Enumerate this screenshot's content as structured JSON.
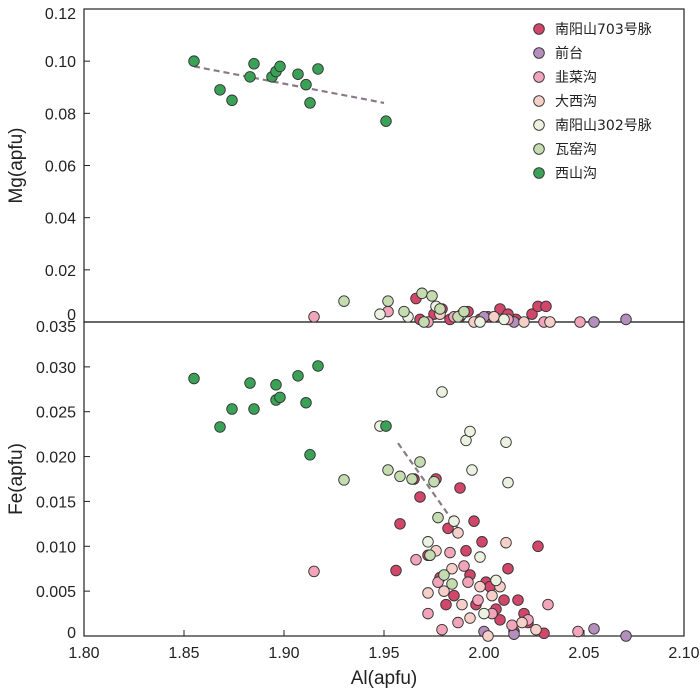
{
  "chart_data": {
    "type": "scatter",
    "panels": [
      {
        "name": "mg",
        "ylabel": "Mg(apfu)",
        "ylim": [
          0,
          0.12
        ],
        "yticks": [
          0,
          0.02,
          0.04,
          0.06,
          0.08,
          0.1,
          0.12
        ],
        "yticklabels": [
          "0",
          "0.02",
          "0.04",
          "0.06",
          "0.08",
          "0.10",
          "0.12"
        ],
        "trend": [
          [
            1.855,
            0.098
          ],
          [
            1.95,
            0.084
          ]
        ]
      },
      {
        "name": "fe",
        "ylabel": "Fe(apfu)",
        "ylim": [
          0,
          0.035
        ],
        "yticks": [
          0,
          0.005,
          0.01,
          0.015,
          0.02,
          0.025,
          0.03,
          0.035
        ],
        "yticklabels": [
          "0",
          "0.005",
          "0.010",
          "0.015",
          "0.020",
          "0.025",
          "0.030",
          "0.035"
        ],
        "trend": [
          [
            1.957,
            0.0215
          ],
          [
            1.987,
            0.012
          ]
        ]
      }
    ],
    "xlabel": "Al(apfu)",
    "xlim": [
      1.8,
      2.1
    ],
    "xticks": [
      1.8,
      1.85,
      1.9,
      1.95,
      2.0,
      2.05,
      2.1
    ],
    "xticklabels": [
      "1.80",
      "1.85",
      "1.90",
      "1.95",
      "2.00",
      "2.05",
      "2.10"
    ],
    "legend_position": "top-right",
    "series": [
      {
        "name": "南阳山703号脉",
        "color": "#d0476a",
        "mg_points": [
          [
            1.968,
            0.001
          ],
          [
            1.975,
            0.003
          ],
          [
            1.983,
            0.001
          ],
          [
            1.992,
            0.004
          ],
          [
            2.002,
            0.002
          ],
          [
            2.008,
            0.005
          ],
          [
            2.016,
            0.001
          ],
          [
            2.024,
            0.003
          ],
          [
            2.027,
            0.006
          ],
          [
            1.979,
            0.005
          ],
          [
            1.998,
            0.001
          ],
          [
            2.012,
            0.003
          ],
          [
            1.988,
            0.002
          ],
          [
            2.031,
            0.006
          ],
          [
            1.966,
            0.009
          ]
        ],
        "fe_points": [
          [
            1.956,
            0.0073
          ],
          [
            1.958,
            0.0125
          ],
          [
            1.965,
            0.0175
          ],
          [
            1.968,
            0.0155
          ],
          [
            1.972,
            0.009
          ],
          [
            1.976,
            0.0175
          ],
          [
            1.978,
            0.0065
          ],
          [
            1.982,
            0.012
          ],
          [
            1.985,
            0.0045
          ],
          [
            1.988,
            0.0165
          ],
          [
            1.991,
            0.0095
          ],
          [
            1.993,
            0.0068
          ],
          [
            1.996,
            0.0035
          ],
          [
            1.999,
            0.0105
          ],
          [
            2.001,
            0.006
          ],
          [
            2.003,
            0.0055
          ],
          [
            2.006,
            0.003
          ],
          [
            2.008,
            0.0018
          ],
          [
            2.012,
            0.0075
          ],
          [
            2.015,
            0.0005
          ],
          [
            2.017,
            0.004
          ],
          [
            2.02,
            0.0025
          ],
          [
            2.022,
            0.0015
          ],
          [
            2.027,
            0.01
          ],
          [
            2.03,
            0.0003
          ],
          [
            1.995,
            0.0128
          ],
          [
            1.981,
            0.0035
          ],
          [
            2.01,
            0.004
          ]
        ]
      },
      {
        "name": "前台",
        "color": "#b48fbe",
        "mg_points": [
          [
            2.055,
            0.0
          ],
          [
            2.071,
            0.001
          ],
          [
            2.0,
            0.002
          ],
          [
            2.015,
            0.0
          ]
        ],
        "fe_points": [
          [
            2.055,
            0.0008
          ],
          [
            2.071,
            0.0
          ],
          [
            2.0,
            0.0005
          ],
          [
            2.015,
            0.0002
          ]
        ]
      },
      {
        "name": "韭菜沟",
        "color": "#f2a5ba",
        "mg_points": [
          [
            1.915,
            0.002
          ],
          [
            1.952,
            0.004
          ],
          [
            1.972,
            0.0
          ],
          [
            1.985,
            0.002
          ],
          [
            2.012,
            0.001
          ],
          [
            2.03,
            0.0
          ],
          [
            2.048,
            0.0
          ]
        ],
        "fe_points": [
          [
            1.915,
            0.0072
          ],
          [
            1.966,
            0.0085
          ],
          [
            1.972,
            0.0025
          ],
          [
            1.977,
            0.006
          ],
          [
            1.983,
            0.0093
          ],
          [
            1.987,
            0.0015
          ],
          [
            1.992,
            0.006
          ],
          [
            1.997,
            0.004
          ],
          [
            2.004,
            0.0025
          ],
          [
            2.014,
            0.0012
          ],
          [
            2.022,
            0.0018
          ],
          [
            2.032,
            0.0035
          ],
          [
            2.047,
            0.0005
          ],
          [
            1.979,
            0.0007
          ],
          [
            1.99,
            0.0078
          ]
        ]
      },
      {
        "name": "大西沟",
        "color": "#f6cfc8",
        "mg_points": [
          [
            1.978,
            0.003
          ],
          [
            1.995,
            0.0
          ],
          [
            2.005,
            0.002
          ],
          [
            2.02,
            0.0
          ],
          [
            2.033,
            0.0
          ]
        ],
        "fe_points": [
          [
            1.976,
            0.0095
          ],
          [
            1.98,
            0.005
          ],
          [
            1.984,
            0.0075
          ],
          [
            1.989,
            0.0035
          ],
          [
            1.993,
            0.002
          ],
          [
            1.998,
            0.0055
          ],
          [
            2.004,
            0.0045
          ],
          [
            2.011,
            0.0104
          ],
          [
            2.019,
            0.0015
          ],
          [
            2.026,
            0.0007
          ],
          [
            1.987,
            0.0115
          ],
          [
            2.002,
            0.0
          ],
          [
            2.008,
            0.0055
          ],
          [
            1.972,
            0.0048
          ]
        ]
      },
      {
        "name": "南阳山302号脉",
        "color": "#ecf2e0",
        "mg_points": [
          [
            1.948,
            0.003
          ],
          [
            1.962,
            0.002
          ],
          [
            1.976,
            0.006
          ],
          [
            1.989,
            0.003
          ],
          [
            1.998,
            0.0
          ],
          [
            2.01,
            0.001
          ]
        ],
        "fe_points": [
          [
            1.948,
            0.0234
          ],
          [
            1.979,
            0.0272
          ],
          [
            1.991,
            0.0218
          ],
          [
            1.993,
            0.0228
          ],
          [
            1.994,
            0.0185
          ],
          [
            2.011,
            0.0216
          ],
          [
            2.012,
            0.0171
          ],
          [
            1.972,
            0.0105
          ],
          [
            1.985,
            0.0128
          ],
          [
            1.998,
            0.0088
          ],
          [
            2.006,
            0.0062
          ],
          [
            2.0,
            0.0025
          ]
        ]
      },
      {
        "name": "瓦窑沟",
        "color": "#c5dbb0",
        "mg_points": [
          [
            1.93,
            0.008
          ],
          [
            1.952,
            0.008
          ],
          [
            1.969,
            0.011
          ],
          [
            1.974,
            0.01
          ],
          [
            1.978,
            0.005
          ],
          [
            1.987,
            0.002
          ],
          [
            1.97,
            0.0
          ],
          [
            1.96,
            0.004
          ],
          [
            1.99,
            0.004
          ]
        ],
        "fe_points": [
          [
            1.93,
            0.0174
          ],
          [
            1.952,
            0.0185
          ],
          [
            1.958,
            0.0178
          ],
          [
            1.964,
            0.0175
          ],
          [
            1.968,
            0.0194
          ],
          [
            1.973,
            0.009
          ],
          [
            1.977,
            0.0132
          ],
          [
            1.98,
            0.0068
          ],
          [
            1.984,
            0.0058
          ],
          [
            1.975,
            0.0172
          ]
        ]
      },
      {
        "name": "西山沟",
        "color": "#3aa257",
        "mg_points": [
          [
            1.855,
            0.1
          ],
          [
            1.868,
            0.089
          ],
          [
            1.874,
            0.085
          ],
          [
            1.883,
            0.094
          ],
          [
            1.885,
            0.099
          ],
          [
            1.894,
            0.094
          ],
          [
            1.896,
            0.096
          ],
          [
            1.898,
            0.098
          ],
          [
            1.907,
            0.095
          ],
          [
            1.911,
            0.091
          ],
          [
            1.913,
            0.084
          ],
          [
            1.917,
            0.097
          ],
          [
            1.951,
            0.077
          ]
        ],
        "fe_points": [
          [
            1.855,
            0.0287
          ],
          [
            1.868,
            0.0233
          ],
          [
            1.874,
            0.0253
          ],
          [
            1.883,
            0.0282
          ],
          [
            1.885,
            0.0253
          ],
          [
            1.896,
            0.0263
          ],
          [
            1.896,
            0.028
          ],
          [
            1.898,
            0.0266
          ],
          [
            1.907,
            0.029
          ],
          [
            1.911,
            0.026
          ],
          [
            1.913,
            0.0202
          ],
          [
            1.917,
            0.0301
          ],
          [
            1.951,
            0.0234
          ]
        ]
      }
    ]
  }
}
